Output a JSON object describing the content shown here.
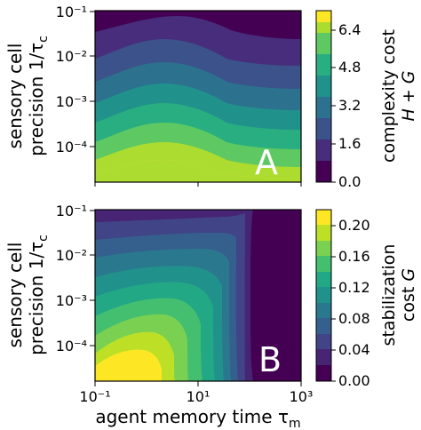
{
  "chart_data": [
    {
      "type": "heatmap",
      "panel": "A",
      "xlabel": "",
      "ylabel": "sensory cell precision 1/τc",
      "xscale": "log",
      "yscale": "log",
      "xlim": [
        0.1,
        1000
      ],
      "ylim": [
        3e-05,
        0.1
      ],
      "x_ticks": [],
      "y_ticks": [
        "10⁻¹",
        "10⁻²",
        "10⁻³",
        "10⁻⁴"
      ],
      "colorbar": {
        "label_line1": "complexity cost",
        "label_line2": "H + G",
        "range": [
          0.0,
          7.2
        ],
        "ticks": [
          "0.0",
          "1.6",
          "3.2",
          "4.8",
          "6.4"
        ],
        "tick_values": [
          0.0,
          1.6,
          3.2,
          4.8,
          6.4
        ],
        "levels": [
          0.0,
          0.8,
          1.6,
          2.4,
          3.2,
          4.0,
          4.8,
          5.6,
          6.4,
          7.2
        ],
        "colors": [
          "#440154",
          "#472d7b",
          "#3b528b",
          "#2c728e",
          "#21918c",
          "#28ae80",
          "#5ec962",
          "#addc30",
          "#fde725"
        ]
      },
      "description": "Cost rises as precision increases; band boundaries bulge upward around tau_m ≈ 1-3 with highest values at bottom.",
      "samples": {
        "x": [
          0.1,
          1,
          3,
          10,
          100,
          1000
        ],
        "y_at_precision_1e-4": [
          5.2,
          6.0,
          6.2,
          5.8,
          5.3,
          5.1
        ],
        "y_at_precision_1e-2": [
          1.3,
          1.9,
          2.1,
          1.6,
          1.2,
          1.1
        ]
      }
    },
    {
      "type": "heatmap",
      "panel": "B",
      "xlabel": "agent memory time τm",
      "ylabel": "sensory cell precision 1/τc",
      "xscale": "log",
      "yscale": "log",
      "xlim": [
        0.1,
        1000
      ],
      "ylim": [
        3e-05,
        0.1
      ],
      "x_ticks": [
        "10⁻¹",
        "10¹",
        "10³"
      ],
      "y_ticks": [
        "10⁻¹",
        "10⁻²",
        "10⁻³",
        "10⁻⁴"
      ],
      "colorbar": {
        "label_line1": "stabilization",
        "label_line2": "cost G",
        "range": [
          0.0,
          0.22
        ],
        "ticks": [
          "0.00",
          "0.04",
          "0.08",
          "0.12",
          "0.16",
          "0.20"
        ],
        "tick_values": [
          0.0,
          0.04,
          0.08,
          0.12,
          0.16,
          0.2
        ],
        "levels": [
          0.0,
          0.02,
          0.04,
          0.06,
          0.08,
          0.1,
          0.12,
          0.14,
          0.16,
          0.18,
          0.2,
          0.22
        ],
        "colors": [
          "#440154",
          "#482475",
          "#414487",
          "#355f8d",
          "#2a788e",
          "#21918c",
          "#22a884",
          "#44bf70",
          "#7ad151",
          "#bddf26",
          "#fde725"
        ]
      },
      "description": "Stabilization cost highest at low precision and small memory; drops sharply to near zero for tau_m above ~50.",
      "samples": {
        "x": [
          0.1,
          1,
          5,
          30,
          60,
          1000
        ],
        "y_at_precision_1e-4": [
          0.2,
          0.21,
          0.18,
          0.09,
          0.02,
          0.0
        ]
      }
    }
  ],
  "labels": {
    "panel_a": "A",
    "panel_b": "B"
  }
}
